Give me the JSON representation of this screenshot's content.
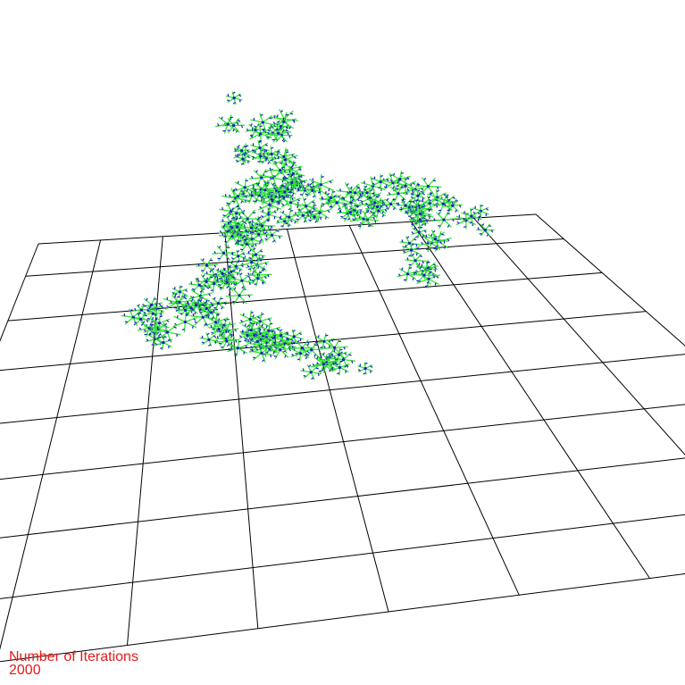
{
  "scene": {
    "background_color": "#ffffff",
    "grid_color": "#000000",
    "node_line_color": "#33e533",
    "node_accent_color": "#1a1acc"
  },
  "overlay": {
    "label": "Number of Iterations",
    "value": "2000",
    "text_color": "#e31b1b"
  }
}
